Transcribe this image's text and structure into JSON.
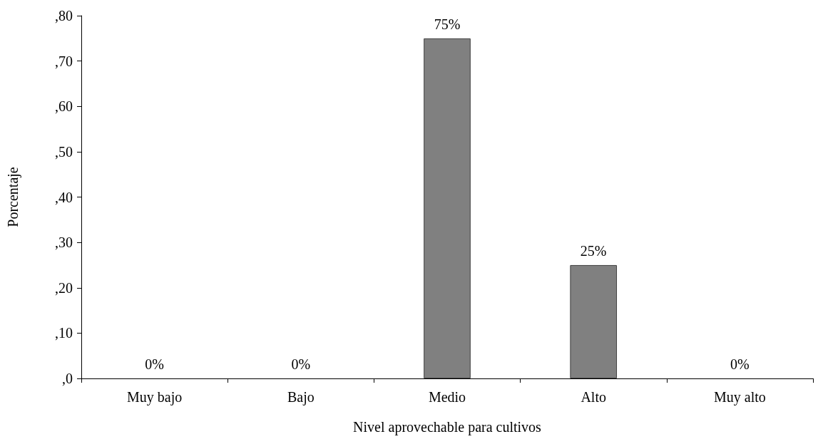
{
  "chart_data": {
    "type": "bar",
    "xlabel": "Nivel aprovechable para cultivos",
    "ylabel": "Porcentaje",
    "categories": [
      "Muy bajo",
      "Bajo",
      "Medio",
      "Alto",
      "Muy alto"
    ],
    "values": [
      0,
      0,
      75,
      25,
      0
    ],
    "value_labels": [
      "0%",
      "0%",
      "75%",
      "25%",
      "0%"
    ],
    "color": "#808080",
    "ylim": [
      0,
      80
    ],
    "yticks": [
      {
        "value": 0,
        "label": ",0"
      },
      {
        "value": 10,
        "label": ",10"
      },
      {
        "value": 20,
        "label": ",20"
      },
      {
        "value": 30,
        "label": ",30"
      },
      {
        "value": 40,
        "label": ",40"
      },
      {
        "value": 50,
        "label": ",50"
      },
      {
        "value": 60,
        "label": ",60"
      },
      {
        "value": 70,
        "label": ",70"
      },
      {
        "value": 80,
        "label": ",80"
      }
    ],
    "grid": false
  }
}
